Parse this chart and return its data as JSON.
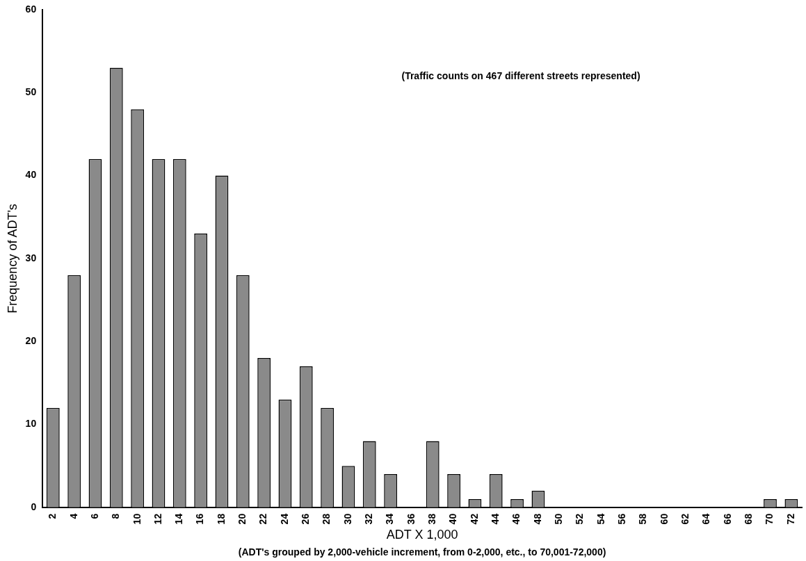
{
  "chart_data": {
    "type": "bar",
    "xlabel": "ADT X 1,000",
    "ylabel": "Frequency of ADT's",
    "categories": [
      "2",
      "4",
      "6",
      "8",
      "10",
      "12",
      "14",
      "16",
      "18",
      "20",
      "22",
      "24",
      "26",
      "28",
      "30",
      "32",
      "34",
      "36",
      "38",
      "40",
      "42",
      "44",
      "46",
      "48",
      "50",
      "52",
      "54",
      "56",
      "58",
      "60",
      "62",
      "64",
      "66",
      "68",
      "70",
      "72"
    ],
    "values": [
      12,
      28,
      42,
      53,
      48,
      42,
      42,
      33,
      40,
      28,
      18,
      13,
      17,
      12,
      5,
      8,
      4,
      0,
      8,
      4,
      1,
      4,
      1,
      2,
      0,
      0,
      0,
      0,
      0,
      0,
      0,
      0,
      0,
      0,
      1,
      1
    ],
    "color": "#8a8a8a",
    "ylim": [
      0,
      60
    ],
    "yticks": [
      0,
      10,
      20,
      30,
      40,
      50,
      60
    ],
    "grid": false,
    "legend": false,
    "annotations": [
      "(Traffic counts on 467 different streets represented)",
      "(ADT's grouped by 2,000-vehicle increment, from 0-2,000, etc., to 70,001-72,000)"
    ]
  }
}
